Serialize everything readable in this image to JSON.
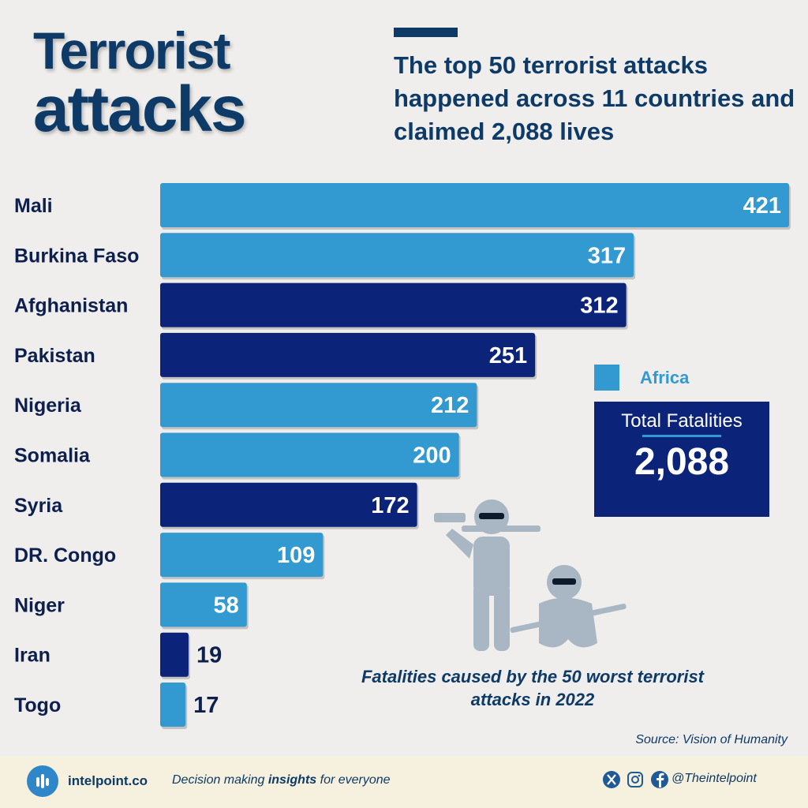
{
  "header": {
    "title_line1": "Terrorist",
    "title_line2": "attacks",
    "subtitle": "The top 50 terrorist attacks happened across 11 countries and claimed 2,088 lives"
  },
  "legend": {
    "africa_label": "Africa",
    "africa_color": "#3399d1",
    "other_color": "#0b247a"
  },
  "total": {
    "label": "Total Fatalities",
    "value": "2,088"
  },
  "caption": "Fatalities caused by the 50 worst terrorist attacks in 2022",
  "source": "Source: Vision of Humanity",
  "footer": {
    "brand": "intelpoint.co",
    "tagline_pre": "Decision making ",
    "tagline_bold": "insights",
    "tagline_post": " for everyone",
    "handle": "@Theintelpoint",
    "icons": [
      "bar-chart-logo-icon",
      "x-icon",
      "instagram-icon",
      "facebook-icon"
    ]
  },
  "chart_data": {
    "type": "bar",
    "orientation": "horizontal",
    "categories": [
      "Mali",
      "Burkina Faso",
      "Afghanistan",
      "Pakistan",
      "Nigeria",
      "Somalia",
      "Syria",
      "DR. Congo",
      "Niger",
      "Iran",
      "Togo"
    ],
    "values": [
      421,
      317,
      312,
      251,
      212,
      200,
      172,
      109,
      58,
      19,
      17
    ],
    "africa": [
      true,
      true,
      false,
      false,
      true,
      true,
      false,
      true,
      true,
      false,
      true
    ],
    "value_labels": [
      "421",
      "317",
      "312",
      "251",
      "212",
      "200",
      "172",
      "109",
      "58",
      "19",
      "17"
    ],
    "xlim": [
      0,
      421
    ]
  }
}
